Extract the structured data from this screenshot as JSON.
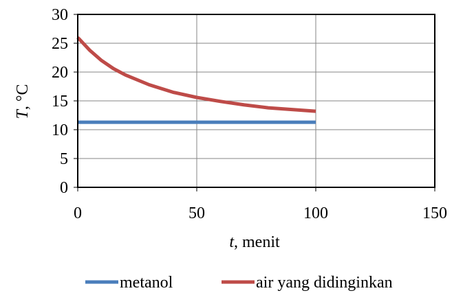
{
  "chart_data": {
    "type": "line",
    "xlabel_italic": "t",
    "xlabel_rest": ", menit",
    "ylabel_italic": "T",
    "ylabel_rest": ", °C",
    "xlim": [
      0,
      150
    ],
    "ylim": [
      0,
      30
    ],
    "x_ticks": [
      "0",
      "50",
      "100",
      "150"
    ],
    "y_ticks": [
      "0",
      "5",
      "10",
      "15",
      "20",
      "25",
      "30"
    ],
    "grid": true,
    "legend_position": "bottom",
    "series": [
      {
        "name": "metanol",
        "color": "#4a7ebb",
        "x": [
          0,
          100
        ],
        "y": [
          11.3,
          11.3
        ]
      },
      {
        "name": "air yang didinginkan",
        "color": "#be4b48",
        "x": [
          0,
          5,
          10,
          15,
          20,
          30,
          40,
          50,
          60,
          70,
          80,
          90,
          100
        ],
        "y": [
          26.0,
          23.8,
          22.0,
          20.6,
          19.5,
          17.8,
          16.5,
          15.6,
          14.9,
          14.3,
          13.8,
          13.5,
          13.2
        ]
      }
    ]
  }
}
